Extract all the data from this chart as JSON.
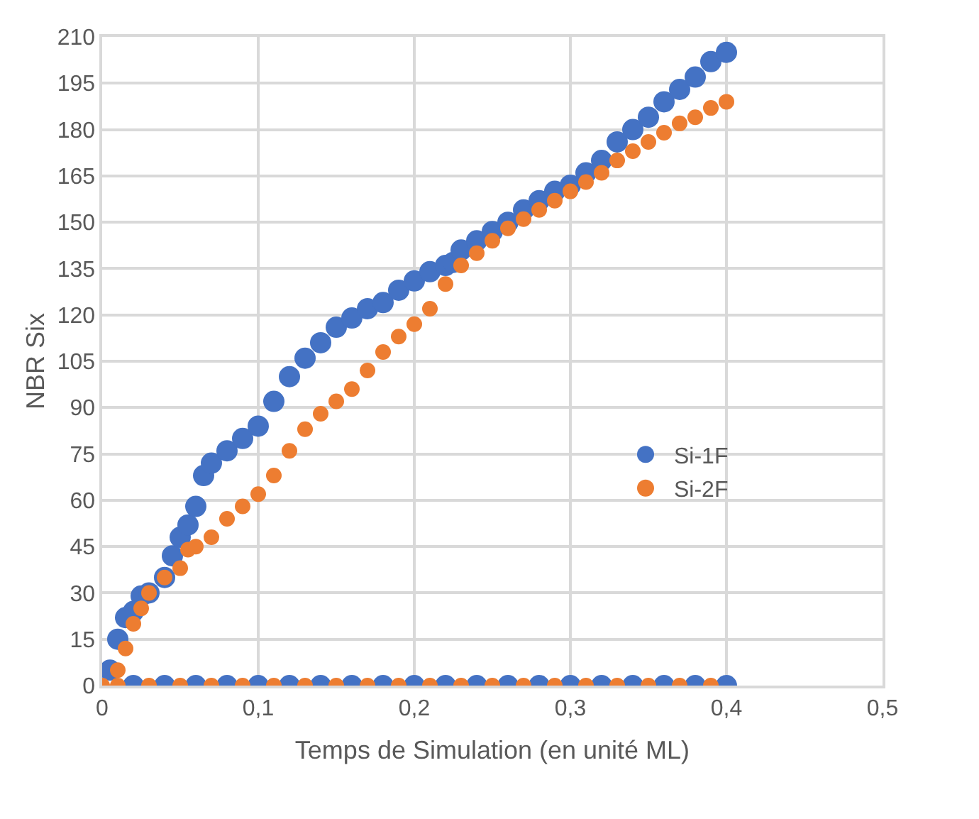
{
  "chart_data": {
    "type": "scatter",
    "xlabel": "Temps de Simulation (en unité ML)",
    "ylabel": "NBR Six",
    "xlim": [
      0,
      0.5
    ],
    "xticks": [
      0,
      {
        "value": 0.1,
        "label": "0,1"
      },
      {
        "value": 0.2,
        "label": "0,2"
      },
      {
        "value": 0.3,
        "label": "0,3"
      },
      {
        "value": 0.4,
        "label": "0,4"
      },
      {
        "value": 0.5,
        "label": "0,5"
      }
    ],
    "ylim": [
      0,
      210
    ],
    "yticks": [
      0,
      15,
      30,
      45,
      60,
      75,
      90,
      105,
      120,
      135,
      150,
      165,
      180,
      195,
      210
    ],
    "grid": true,
    "legend": "right",
    "marker": "circle",
    "series": [
      {
        "name": "Si-1F",
        "color": "#4472c4",
        "x": [
          0.005,
          0.01,
          0.015,
          0.02,
          0.025,
          0.03,
          0.04,
          0.045,
          0.05,
          0.055,
          0.06,
          0.065,
          0.07,
          0.08,
          0.09,
          0.1,
          0.11,
          0.12,
          0.13,
          0.14,
          0.15,
          0.16,
          0.17,
          0.18,
          0.19,
          0.2,
          0.21,
          0.22,
          0.225,
          0.23,
          0.24,
          0.25,
          0.26,
          0.27,
          0.28,
          0.29,
          0.3,
          0.31,
          0.32,
          0.33,
          0.34,
          0.35,
          0.36,
          0.37,
          0.38,
          0.39,
          0.4,
          0.02,
          0.04,
          0.06,
          0.08,
          0.1,
          0.12,
          0.14,
          0.16,
          0.18,
          0.2,
          0.22,
          0.24,
          0.26,
          0.28,
          0.3,
          0.32,
          0.34,
          0.36,
          0.38,
          0.4
        ],
        "values": [
          5,
          15,
          22,
          24,
          29,
          30,
          35,
          42,
          48,
          52,
          58,
          68,
          72,
          76,
          80,
          84,
          92,
          100,
          106,
          111,
          116,
          119,
          122,
          124,
          128,
          131,
          134,
          136,
          137,
          141,
          144,
          147,
          150,
          154,
          157,
          160,
          162,
          166,
          170,
          176,
          180,
          184,
          189,
          193,
          197,
          202,
          205,
          0,
          0,
          0,
          0,
          0,
          0,
          0,
          0,
          0,
          0,
          0,
          0,
          0,
          0,
          0,
          0,
          0,
          0,
          0,
          0
        ]
      },
      {
        "name": "Si-2F",
        "color": "#ed7d31",
        "x": [
          0,
          0.01,
          0.015,
          0.02,
          0.025,
          0.03,
          0.04,
          0.05,
          0.055,
          0.06,
          0.07,
          0.08,
          0.09,
          0.1,
          0.11,
          0.12,
          0.13,
          0.14,
          0.15,
          0.16,
          0.17,
          0.18,
          0.19,
          0.2,
          0.21,
          0.22,
          0.23,
          0.24,
          0.25,
          0.26,
          0.27,
          0.28,
          0.29,
          0.3,
          0.31,
          0.32,
          0.33,
          0.34,
          0.35,
          0.36,
          0.37,
          0.38,
          0.39,
          0.4,
          0.01,
          0.03,
          0.05,
          0.07,
          0.09,
          0.11,
          0.13,
          0.15,
          0.17,
          0.19,
          0.21,
          0.23,
          0.25,
          0.27,
          0.29,
          0.31,
          0.33,
          0.35,
          0.37,
          0.39
        ],
        "values": [
          0,
          5,
          12,
          20,
          25,
          30,
          35,
          38,
          44,
          45,
          48,
          54,
          58,
          62,
          68,
          76,
          83,
          88,
          92,
          96,
          102,
          108,
          113,
          117,
          122,
          130,
          136,
          140,
          144,
          148,
          151,
          154,
          157,
          160,
          163,
          166,
          170,
          173,
          176,
          179,
          182,
          184,
          187,
          189,
          0,
          0,
          0,
          0,
          0,
          0,
          0,
          0,
          0,
          0,
          0,
          0,
          0,
          0,
          0,
          0,
          0,
          0,
          0,
          0
        ]
      }
    ]
  }
}
